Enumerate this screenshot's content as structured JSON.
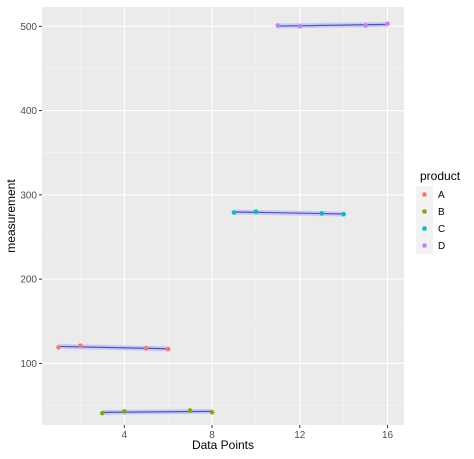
{
  "chart_data": {
    "type": "scatter",
    "xlabel": "Data Points",
    "ylabel": "measurement",
    "xlim": [
      0.25,
      16.75
    ],
    "ylim": [
      26.9,
      522.9
    ],
    "x_ticks": [
      4,
      8,
      12,
      16
    ],
    "y_ticks": [
      100,
      200,
      300,
      400,
      500
    ],
    "x_tick_labels": [
      "4",
      "8",
      "12",
      "16"
    ],
    "y_tick_labels": [
      "100",
      "200",
      "300",
      "400",
      "500"
    ],
    "grid": true,
    "legend": {
      "title": "product",
      "placement": "right"
    },
    "fit_line_color": "#4d4dd1",
    "fit_band_color": "#c8c8f0",
    "series": [
      {
        "name": "A",
        "color": "#f8766d",
        "x": [
          1,
          2,
          5,
          6
        ],
        "y": [
          119,
          121,
          118,
          117
        ]
      },
      {
        "name": "B",
        "color": "#7cae00",
        "x": [
          3,
          4,
          7,
          8
        ],
        "y": [
          41,
          43,
          44,
          42
        ]
      },
      {
        "name": "C",
        "color": "#00bfc4",
        "x": [
          9,
          10,
          13,
          14
        ],
        "y": [
          279,
          280,
          278,
          277
        ]
      },
      {
        "name": "D",
        "color": "#c77cff",
        "x": [
          11,
          12,
          15,
          16
        ],
        "y": [
          501,
          500,
          501,
          503
        ]
      }
    ]
  }
}
